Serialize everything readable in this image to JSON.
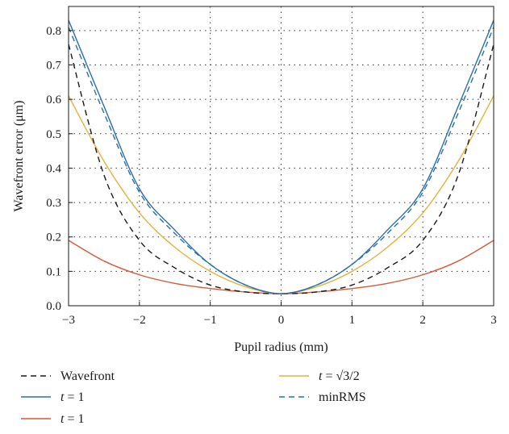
{
  "chart_data": {
    "type": "line",
    "xlabel": "Pupil radius (mm)",
    "ylabel": "Wavefront error (μm)",
    "xlim": [
      -3,
      3
    ],
    "ylim": [
      0,
      0.87
    ],
    "x_ticks": [
      "−3",
      "−2",
      "−1",
      "0",
      "1",
      "2",
      "3"
    ],
    "x_tick_values": [
      -3,
      -2,
      -1,
      0,
      1,
      2,
      3
    ],
    "y_ticks": [
      "0.0",
      "0.1",
      "0.2",
      "0.3",
      "0.4",
      "0.5",
      "0.6",
      "0.7",
      "0.8"
    ],
    "y_tick_values": [
      0.0,
      0.1,
      0.2,
      0.3,
      0.4,
      0.5,
      0.6,
      0.7,
      0.8
    ],
    "grid": "dotted",
    "legend_position": "bottom",
    "x": [
      -3,
      -2.5,
      -2,
      -1.5,
      -1,
      -0.5,
      0,
      0.5,
      1,
      1.5,
      2,
      2.5,
      3
    ],
    "series": [
      {
        "name": "Wavefront",
        "color": "#1a1a1a",
        "dash": "dashed",
        "values": [
          0.76,
          0.38,
          0.19,
          0.11,
          0.06,
          0.04,
          0.035,
          0.04,
          0.06,
          0.11,
          0.19,
          0.38,
          0.76
        ]
      },
      {
        "name": "t = 1",
        "color": "#2a6fad",
        "dash": "solid",
        "values": [
          0.83,
          0.58,
          0.34,
          0.22,
          0.12,
          0.06,
          0.035,
          0.06,
          0.12,
          0.22,
          0.34,
          0.58,
          0.83
        ]
      },
      {
        "name": "t = 1",
        "color": "#d8593a",
        "dash": "solid",
        "values": [
          0.19,
          0.13,
          0.09,
          0.065,
          0.05,
          0.04,
          0.035,
          0.04,
          0.05,
          0.065,
          0.09,
          0.13,
          0.19
        ]
      },
      {
        "name": "t = √3/2",
        "color": "#e3b23c",
        "dash": "solid",
        "values": [
          0.61,
          0.42,
          0.27,
          0.17,
          0.1,
          0.055,
          0.035,
          0.055,
          0.1,
          0.17,
          0.27,
          0.42,
          0.61
        ]
      },
      {
        "name": "minRMS",
        "color": "#2a6fad",
        "dash": "dashed",
        "values": [
          0.81,
          0.56,
          0.33,
          0.21,
          0.12,
          0.06,
          0.035,
          0.06,
          0.12,
          0.21,
          0.33,
          0.56,
          0.81
        ]
      }
    ],
    "legend": {
      "col1": [
        {
          "series": 0,
          "text": "Wavefront"
        },
        {
          "series": 1,
          "italic": "t",
          "text": " = 1"
        },
        {
          "series": 2,
          "italic": "t",
          "text": " = 1"
        }
      ],
      "col2": [
        {
          "series": 3,
          "italic": "t",
          "text": " = √3/2"
        },
        {
          "series": 4,
          "text": "minRMS"
        }
      ]
    }
  }
}
